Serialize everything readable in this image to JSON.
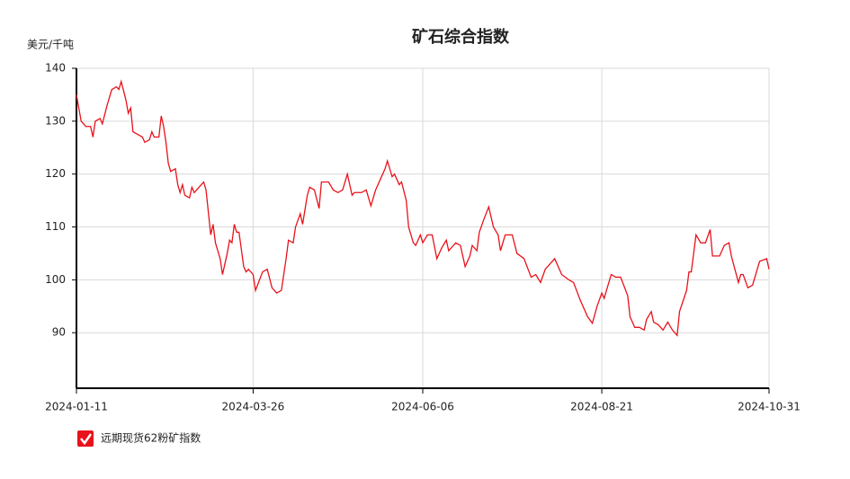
{
  "chart_data": {
    "type": "line",
    "title": "矿石综合指数",
    "y_label": "美元/千吨",
    "x": [
      "2024-01-11",
      "2024-01-13",
      "2024-01-15",
      "2024-01-17",
      "2024-01-18",
      "2024-01-19",
      "2024-01-21",
      "2024-01-22",
      "2024-01-24",
      "2024-01-26",
      "2024-01-28",
      "2024-01-29",
      "2024-01-30",
      "2024-02-01",
      "2024-02-02",
      "2024-02-03",
      "2024-02-04",
      "2024-02-06",
      "2024-02-08",
      "2024-02-09",
      "2024-02-11",
      "2024-02-12",
      "2024-02-13",
      "2024-02-15",
      "2024-02-16",
      "2024-02-17",
      "2024-02-18",
      "2024-02-19",
      "2024-02-20",
      "2024-02-22",
      "2024-02-23",
      "2024-02-24",
      "2024-02-25",
      "2024-02-26",
      "2024-02-28",
      "2024-02-29",
      "2024-03-01",
      "2024-03-03",
      "2024-03-05",
      "2024-03-06",
      "2024-03-08",
      "2024-03-09",
      "2024-03-10",
      "2024-03-12",
      "2024-03-13",
      "2024-03-15",
      "2024-03-16",
      "2024-03-17",
      "2024-03-18",
      "2024-03-19",
      "2024-03-20",
      "2024-03-22",
      "2024-03-23",
      "2024-03-24",
      "2024-03-26",
      "2024-03-27",
      "2024-03-30",
      "2024-04-01",
      "2024-04-03",
      "2024-04-05",
      "2024-04-07",
      "2024-04-09",
      "2024-04-10",
      "2024-04-12",
      "2024-04-13",
      "2024-04-15",
      "2024-04-16",
      "2024-04-18",
      "2024-04-19",
      "2024-04-21",
      "2024-04-23",
      "2024-04-24",
      "2024-04-27",
      "2024-04-29",
      "2024-05-01",
      "2024-05-03",
      "2024-05-05",
      "2024-05-07",
      "2024-05-08",
      "2024-05-11",
      "2024-05-13",
      "2024-05-15",
      "2024-05-17",
      "2024-05-19",
      "2024-05-21",
      "2024-05-22",
      "2024-05-24",
      "2024-05-25",
      "2024-05-27",
      "2024-05-28",
      "2024-05-30",
      "2024-05-31",
      "2024-06-02",
      "2024-06-03",
      "2024-06-05",
      "2024-06-06",
      "2024-06-08",
      "2024-06-10",
      "2024-06-12",
      "2024-06-14",
      "2024-06-16",
      "2024-06-17",
      "2024-06-20",
      "2024-06-22",
      "2024-06-24",
      "2024-06-26",
      "2024-06-27",
      "2024-06-29",
      "2024-06-30",
      "2024-07-02",
      "2024-07-04",
      "2024-07-06",
      "2024-07-08",
      "2024-07-09",
      "2024-07-11",
      "2024-07-14",
      "2024-07-16",
      "2024-07-19",
      "2024-07-22",
      "2024-07-24",
      "2024-07-26",
      "2024-07-28",
      "2024-08-01",
      "2024-08-04",
      "2024-08-07",
      "2024-08-09",
      "2024-08-12",
      "2024-08-15",
      "2024-08-17",
      "2024-08-19",
      "2024-08-21",
      "2024-08-22",
      "2024-08-25",
      "2024-08-27",
      "2024-08-29",
      "2024-09-01",
      "2024-09-02",
      "2024-09-04",
      "2024-09-06",
      "2024-09-08",
      "2024-09-09",
      "2024-09-11",
      "2024-09-12",
      "2024-09-14",
      "2024-09-16",
      "2024-09-18",
      "2024-09-20",
      "2024-09-22",
      "2024-09-23",
      "2024-09-26",
      "2024-09-27",
      "2024-09-28",
      "2024-09-30",
      "2024-10-02",
      "2024-10-04",
      "2024-10-06",
      "2024-10-07",
      "2024-10-10",
      "2024-10-12",
      "2024-10-14",
      "2024-10-15",
      "2024-10-18",
      "2024-10-19",
      "2024-10-20",
      "2024-10-22",
      "2024-10-24",
      "2024-10-26",
      "2024-10-27",
      "2024-10-30",
      "2024-10-31"
    ],
    "series": [
      {
        "name": "远期现货62粉矿指数",
        "color": "#e8121b",
        "values": [
          135,
          130,
          129,
          129,
          127,
          130,
          130.5,
          129.5,
          133,
          136,
          136.5,
          136,
          137.5,
          134,
          131.5,
          132.5,
          128,
          127.5,
          127,
          126,
          126.5,
          128,
          127,
          127,
          131,
          129,
          126,
          122,
          120.5,
          121,
          118,
          116.5,
          118,
          116,
          115.5,
          117.5,
          116.5,
          117.5,
          118.5,
          117,
          108.5,
          110.5,
          107,
          104,
          101,
          105,
          107.5,
          107,
          110.5,
          109,
          109,
          102.5,
          101.5,
          102,
          101,
          98,
          101.5,
          102,
          98.5,
          97.5,
          98,
          104,
          107.5,
          107,
          110,
          112.5,
          110.5,
          116,
          117.5,
          117,
          113.5,
          118.5,
          118.5,
          117,
          116.5,
          117,
          120,
          116,
          116.5,
          116.5,
          117,
          114,
          117,
          119,
          121,
          122.5,
          119.5,
          120,
          118,
          118.5,
          115,
          110,
          107,
          106.5,
          108.5,
          107,
          108.5,
          108.5,
          104,
          106,
          107.5,
          105.5,
          107,
          106.5,
          102.5,
          104.5,
          106.5,
          105.5,
          109,
          111.5,
          113.8,
          110,
          108.5,
          105.5,
          108.5,
          108.5,
          105,
          104,
          100.5,
          101,
          99.5,
          102,
          104,
          101,
          100,
          99.5,
          96,
          93,
          91.8,
          95,
          97.5,
          96.5,
          101,
          100.5,
          100.5,
          97,
          93,
          91,
          91,
          90.5,
          92.5,
          94,
          92,
          91.5,
          90.5,
          92,
          90.5,
          89.5,
          94,
          98,
          101.5,
          101.5,
          108.5,
          107,
          107,
          109.5,
          104.5,
          104.5,
          106.5,
          107,
          104.5,
          99.5,
          101,
          101,
          98.5,
          99,
          102,
          103.5,
          104,
          102
        ]
      }
    ],
    "xlim": [
      "2024-01-11",
      "2024-10-31"
    ],
    "xticks": [
      "2024-01-11",
      "2024-03-26",
      "2024-06-06",
      "2024-08-21",
      "2024-10-31"
    ],
    "ylim": [
      79.5,
      140
    ],
    "yticks": [
      90,
      100,
      110,
      120,
      130,
      140
    ],
    "grid": true
  }
}
